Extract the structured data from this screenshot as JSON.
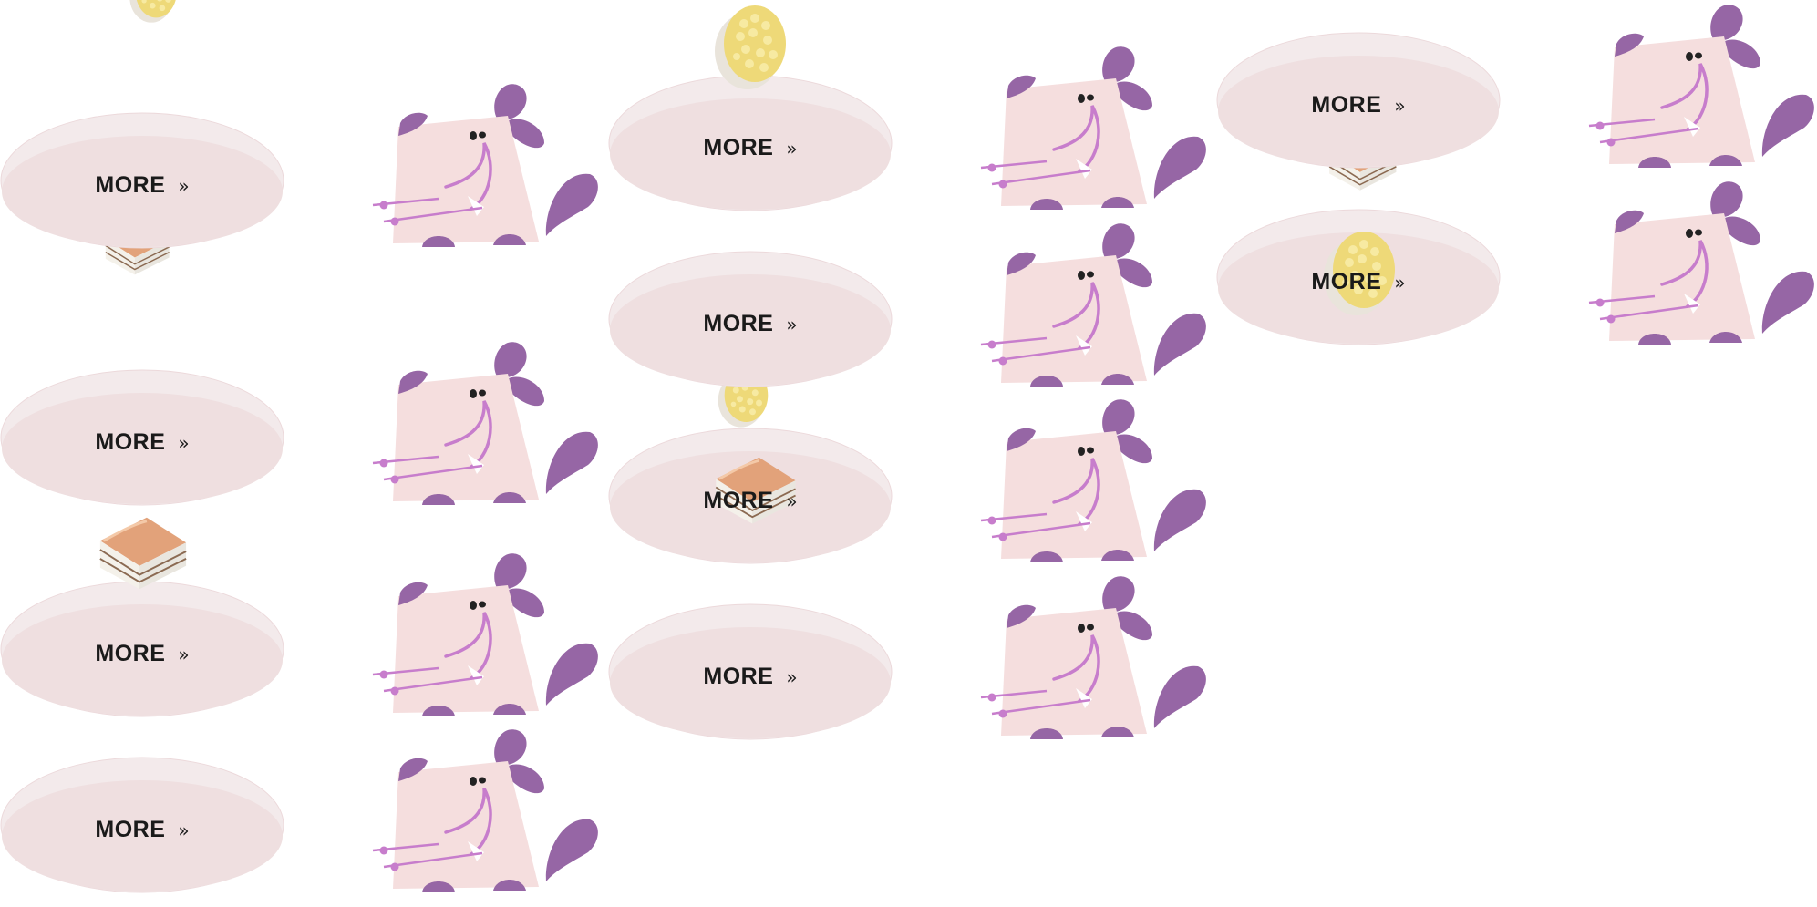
{
  "plates": [
    {
      "label": "MORE",
      "chevron": "»"
    },
    {
      "label": "MORE",
      "chevron": "»"
    },
    {
      "label": "MORE",
      "chevron": "»"
    },
    {
      "label": "MORE",
      "chevron": "»"
    },
    {
      "label": "MORE",
      "chevron": "»"
    },
    {
      "label": "MORE",
      "chevron": "»"
    },
    {
      "label": "MORE",
      "chevron": "»"
    },
    {
      "label": "MORE",
      "chevron": "»"
    },
    {
      "label": "MORE",
      "chevron": "»"
    },
    {
      "label": "MORE",
      "chevron": "»"
    }
  ],
  "colors": {
    "plate_rim": "#f2e8e9",
    "plate_center": "#efdfe0",
    "mouse_body": "#f5dede",
    "mouse_accent": "#9666a5",
    "mouse_whisker": "#c77dcc",
    "text": "#1a1a1a"
  },
  "icons": {
    "chevron": "double-chevron-right-icon",
    "mouse": "cartoon-mouse-illustration",
    "cake": "layer-cake-slice-illustration",
    "rice": "rice-cake-illustration"
  }
}
